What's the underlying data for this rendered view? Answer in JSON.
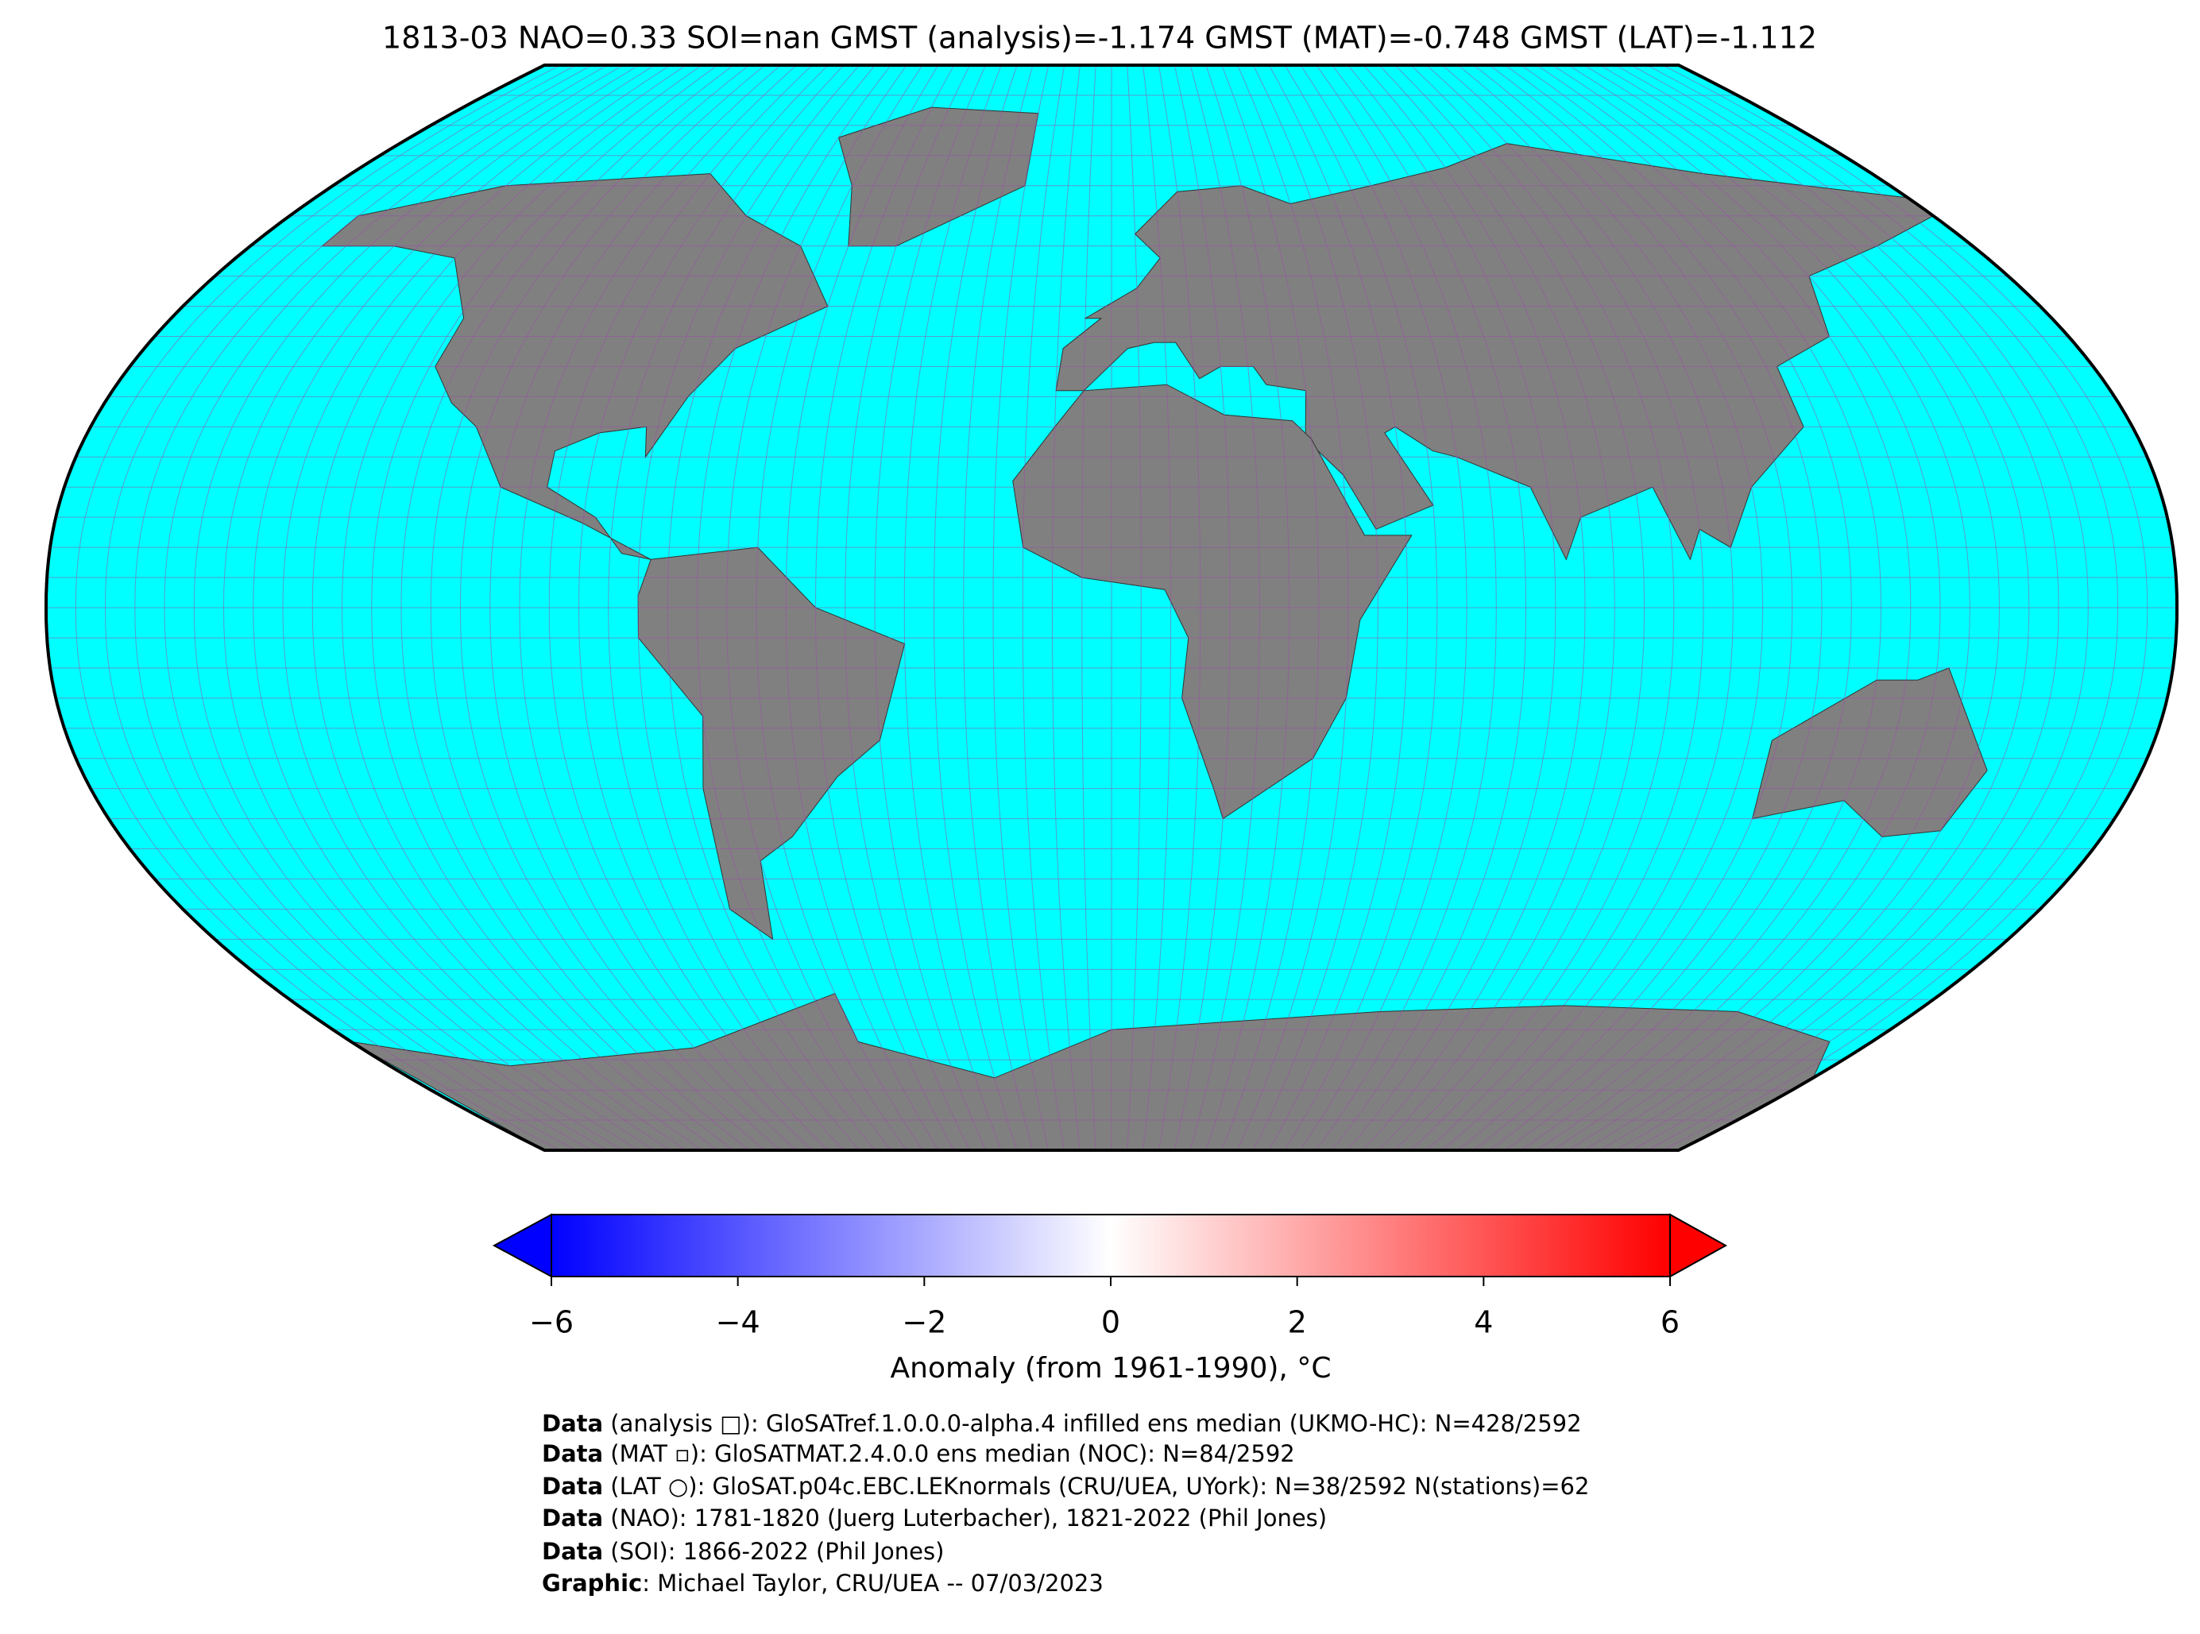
{
  "title": "1813-03 NAO=0.33 SOI=nan GMST (analysis)=-1.174 GMST (MAT)=-0.748 GMST (LAT)=-1.112",
  "colorbar": {
    "label": "Anomaly (from 1961-1990), °C",
    "lim": [
      -6,
      6
    ],
    "ticks": [
      {
        "value": -6,
        "label": "−6"
      },
      {
        "value": -4,
        "label": "−4"
      },
      {
        "value": -2,
        "label": "−2"
      },
      0,
      2,
      4,
      6
    ],
    "colors": [
      "#0000ff",
      "#ffffff",
      "#ff0000"
    ]
  },
  "footer": [
    {
      "bold": "Data",
      "text": " (analysis □): GloSATref.1.0.0.0-alpha.4 infilled ens median (UKMO-HC): N=428/2592"
    },
    {
      "bold": "Data",
      "text": " (MAT ▫): GloSATMAT.2.4.0.0 ens median (NOC): N=84/2592"
    },
    {
      "bold": "Data",
      "text": " (LAT ○): GloSAT.p04c.EBC.LEKnormals (CRU/UEA, UYork): N=38/2592 N(stations)=62"
    },
    {
      "bold": "Data",
      "text": " (NAO): 1781-1820 (Juerg Luterbacher), 1821-2022 (Phil Jones)"
    },
    {
      "bold": "Data",
      "text": " (SOI): 1866-2022 (Phil Jones)"
    },
    {
      "bold": "Graphic",
      "text": ": Michael Taylor, CRU/UEA -- 07/03/2023"
    }
  ]
}
